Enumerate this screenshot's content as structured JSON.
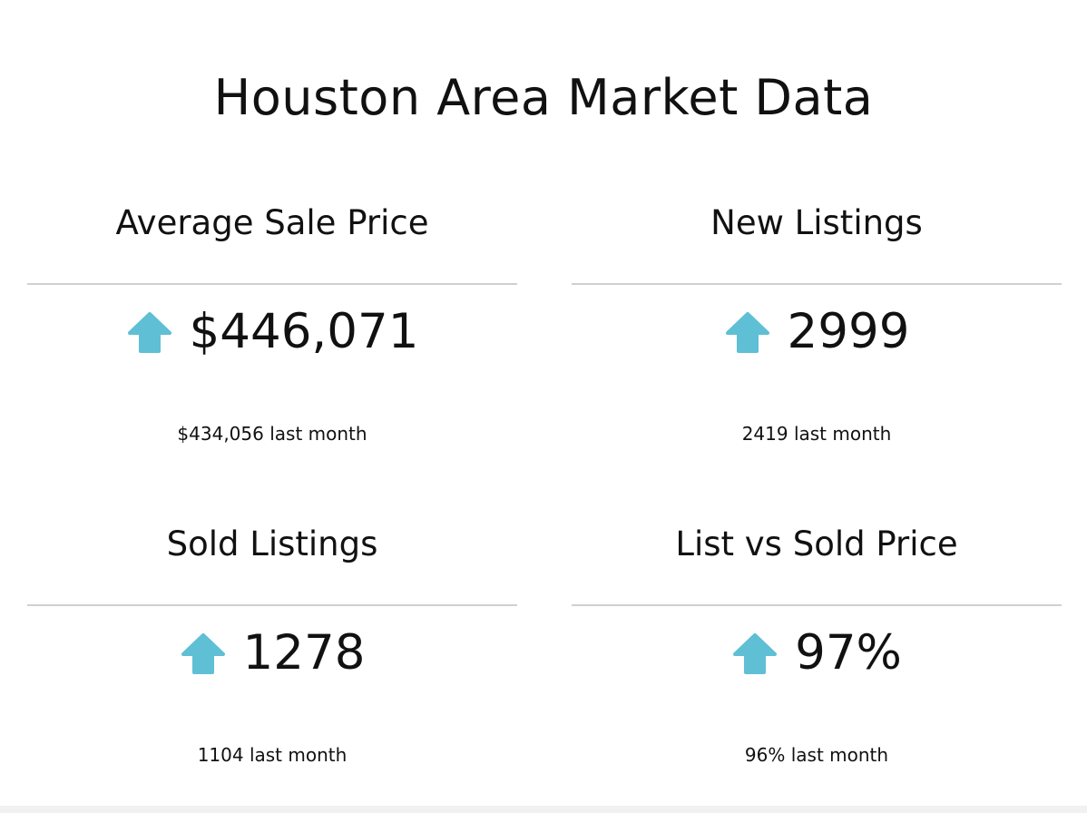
{
  "page": {
    "title": "Houston Area Market Data"
  },
  "colors": {
    "arrow": "#5fbfd4",
    "divider": "#d0d0d0",
    "text": "#111111"
  },
  "metrics": [
    {
      "heading": "Average Sale Price",
      "trend_icon": "arrow-up-icon",
      "value": "$446,071",
      "previous": "$434,056 last month"
    },
    {
      "heading": "New Listings",
      "trend_icon": "arrow-up-icon",
      "value": "2999",
      "previous": "2419 last month"
    },
    {
      "heading": "Sold Listings",
      "trend_icon": "arrow-up-icon",
      "value": "1278",
      "previous": "1104 last month"
    },
    {
      "heading": "List vs Sold Price",
      "trend_icon": "arrow-up-icon",
      "value": "97%",
      "previous": "96% last month"
    }
  ]
}
